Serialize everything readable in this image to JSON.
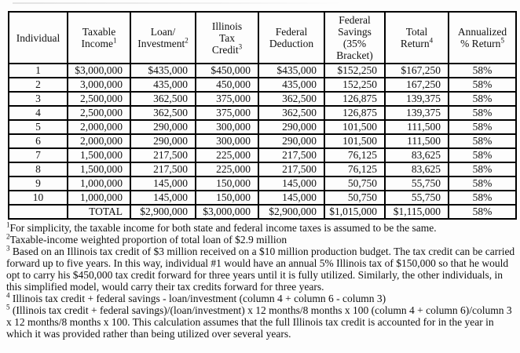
{
  "table": {
    "columns": [
      {
        "label": "Individual",
        "sup": ""
      },
      {
        "label": "Taxable\nIncome",
        "sup": "1"
      },
      {
        "label": "Loan/\nInvestment",
        "sup": "2"
      },
      {
        "label": "Illinois\nTax\nCredit",
        "sup": "3"
      },
      {
        "label": "Federal\nDeduction",
        "sup": ""
      },
      {
        "label": "Federal\nSavings\n(35%\nBracket)",
        "sup": ""
      },
      {
        "label": "Total\nReturn",
        "sup": "4"
      },
      {
        "label": "Annualized\n% Return",
        "sup": "5"
      }
    ],
    "rows": [
      [
        "1",
        "$3,000,000",
        "$435,000",
        "$450,000",
        "$435,000",
        "$152,250",
        "$167,250",
        "58%"
      ],
      [
        "2",
        "3,000,000",
        "435,000",
        "450,000",
        "435,000",
        "152,250",
        "167,250",
        "58%"
      ],
      [
        "3",
        "2,500,000",
        "362,500",
        "375,000",
        "362,500",
        "126,875",
        "139,375",
        "58%"
      ],
      [
        "4",
        "2,500,000",
        "362,500",
        "375,000",
        "362,500",
        "126,875",
        "139,375",
        "58%"
      ],
      [
        "5",
        "2,000,000",
        "290,000",
        "300,000",
        "290,000",
        "101,500",
        "111,500",
        "58%"
      ],
      [
        "6",
        "2,000,000",
        "290,000",
        "300,000",
        "290,000",
        "101,500",
        "111,500",
        "58%"
      ],
      [
        "7",
        "1,500,000",
        "217,500",
        "225,000",
        "217,500",
        "76,125",
        "83,625",
        "58%"
      ],
      [
        "8",
        "1,500,000",
        "217,500",
        "225,000",
        "217,500",
        "76,125",
        "83,625",
        "58%"
      ],
      [
        "9",
        "1,000,000",
        "145,000",
        "150,000",
        "145,000",
        "50,750",
        "55,750",
        "58%"
      ],
      [
        "10",
        "1,000,000",
        "145,000",
        "150,000",
        "145,000",
        "50,750",
        "55,750",
        "58%"
      ],
      [
        "",
        "TOTAL",
        "$2,900,000",
        "$3,000,000",
        "$2,900,000",
        "$1,015,000",
        "$1,115,000",
        "58%"
      ]
    ]
  },
  "footnotes": [
    {
      "sup": "1",
      "text": "For simplicity, the taxable income for both state and federal income taxes is assumed to be the same."
    },
    {
      "sup": "2",
      "text": "Taxable-income weighted proportion of total loan of $2.9 million"
    },
    {
      "sup": "3",
      "text": " Based on an Illinois tax credit of $3 million received on a $10 million production budget.  The tax credit can be carried forward up to five years.  In this way, individual #1 would have an annual 5% Illinois tax of $150,000 so that he would opt to carry his $450,000 tax credit forward for three years until it is fully utilized.  Similarly, the other individuals, in this simplified model, would carry their tax credits forward for three years."
    },
    {
      "sup": "4",
      "text": " Illinois tax credit + federal savings - loan/investment (column 4 + column 6 - column 3)"
    },
    {
      "sup": "5",
      "text": " (Illinois tax credit + federal savings)/(loan/investment) x 12 months/8 months x 100 (column 4 + column 6)/column 3 x 12 months/8 months x 100.  This calculation assumes that the full Illinois tax credit is accounted for in the year in which it was provided rather than being utilized over several years."
    }
  ],
  "colors": {
    "background": "#fdfdfd",
    "border": "#000000",
    "text": "#111111"
  }
}
